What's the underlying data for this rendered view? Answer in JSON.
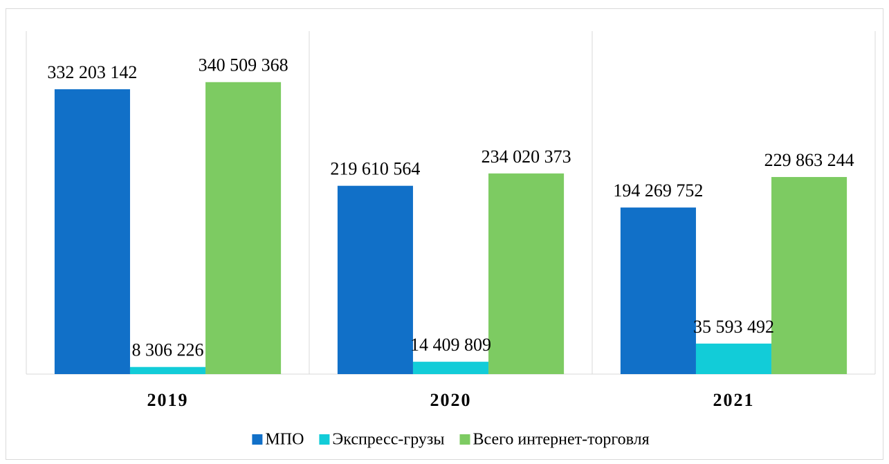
{
  "chart_data": {
    "type": "bar",
    "categories": [
      "2019",
      "2020",
      "2021"
    ],
    "series": [
      {
        "name": "МПО",
        "color": "#1170c8",
        "values": [
          332203142,
          219610564,
          194269752
        ],
        "value_labels": [
          "332 203 142",
          "219 610 564",
          "194 269 752"
        ]
      },
      {
        "name": "Экспресс-грузы",
        "color": "#12ccd8",
        "values": [
          8306226,
          14409809,
          35593492
        ],
        "value_labels": [
          "8 306 226",
          "14 409 809",
          "35 593 492"
        ]
      },
      {
        "name": "Всего интернет-торговля",
        "color": "#7dcb62",
        "values": [
          340509368,
          234020373,
          229863244
        ],
        "value_labels": [
          "340 509 368",
          "234 020 373",
          "229 863 244"
        ]
      }
    ],
    "ylim": [
      0,
      400000000
    ],
    "legend": "bottom"
  }
}
